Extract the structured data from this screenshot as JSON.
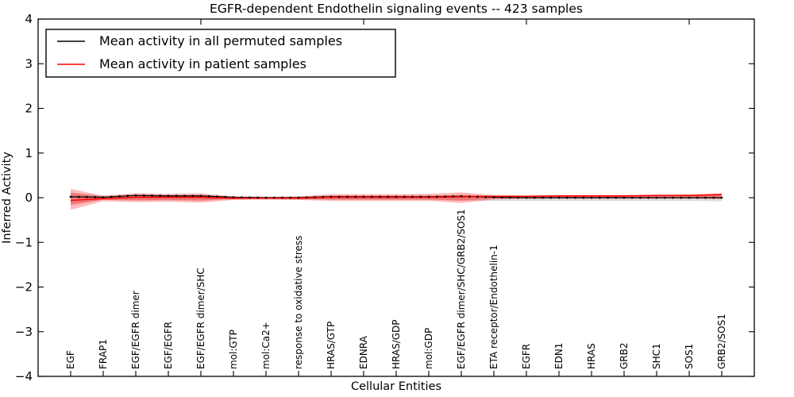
{
  "figure": {
    "background": "#ffffff",
    "border_color": "#000000"
  },
  "legend": {
    "position": "upper left",
    "entries": [
      {
        "label": "Mean activity in all permuted samples",
        "color": "#000000"
      },
      {
        "label": "Mean activity in patient samples",
        "color": "#ff0000"
      }
    ]
  },
  "chart_data": {
    "type": "line",
    "title": "EGFR-dependent Endothelin signaling events -- 423 samples",
    "xlabel": "Cellular Entities",
    "ylabel": "Inferred Activity",
    "ylim": [
      -4,
      4
    ],
    "yticks": [
      4,
      3,
      2,
      1,
      0,
      -1,
      -2,
      -3,
      -4
    ],
    "ytick_labels": [
      "4",
      "3",
      "2",
      "1",
      "0",
      "−1",
      "−2",
      "−3",
      "−4"
    ],
    "top_ticks": [
      5,
      10,
      15,
      20
    ],
    "grid": false,
    "legend_position": "upper left",
    "categories": [
      "EGF",
      "FRAP1",
      "EGF/EGFR dimer",
      "EGF/EGFR",
      "EGF/EGFR dimer/SHC",
      "mol:GTP",
      "mol:Ca2+",
      "response to oxidative stress",
      "HRAS/GTP",
      "EDNRA",
      "HRAS/GDP",
      "mol:GDP",
      "EGF/EGFR dimer/SHC/GRB2/SOS1",
      "ETA receptor/Endothelin-1",
      "EGFR",
      "EDN1",
      "HRAS",
      "GRB2",
      "SHC1",
      "SOS1",
      "GRB2/SOS1"
    ],
    "series": [
      {
        "name": "Mean activity in all permuted samples",
        "color": "#000000",
        "marker": "dot",
        "values": [
          0.02,
          0.01,
          0.05,
          0.04,
          0.04,
          0.01,
          0.0,
          0.0,
          0.02,
          0.02,
          0.02,
          0.02,
          0.03,
          0.01,
          0.0,
          0.0,
          0.0,
          0.0,
          0.0,
          0.0,
          0.0
        ]
      },
      {
        "name": "Mean activity in patient samples",
        "color": "#ff0000",
        "marker": "none",
        "values": [
          -0.06,
          -0.02,
          0.01,
          0.01,
          0.01,
          -0.01,
          -0.01,
          -0.01,
          0.01,
          0.01,
          0.01,
          0.01,
          0.02,
          0.03,
          0.03,
          0.04,
          0.04,
          0.04,
          0.05,
          0.05,
          0.07
        ]
      }
    ],
    "bands": [
      {
        "name": "permuted-samples-ci",
        "color": "#888888",
        "opacity": 0.3,
        "upper": [
          0.12,
          0.05,
          0.08,
          0.07,
          0.07,
          0.03,
          0.03,
          0.03,
          0.05,
          0.05,
          0.05,
          0.05,
          0.06,
          0.04,
          0.03,
          0.03,
          0.03,
          0.03,
          0.03,
          0.03,
          0.04
        ],
        "lower": [
          -0.14,
          -0.05,
          -0.06,
          -0.06,
          -0.06,
          -0.04,
          -0.04,
          -0.04,
          -0.05,
          -0.05,
          -0.05,
          -0.05,
          -0.06,
          -0.07,
          -0.07,
          -0.07,
          -0.07,
          -0.07,
          -0.07,
          -0.07,
          -0.08
        ]
      },
      {
        "name": "patient-samples-ci-outer",
        "color": "#ff0000",
        "opacity": 0.26,
        "upper": [
          0.2,
          0.04,
          0.1,
          0.09,
          0.1,
          0.03,
          0.02,
          0.03,
          0.08,
          0.08,
          0.08,
          0.09,
          0.12,
          0.06,
          0.05,
          0.06,
          0.06,
          0.06,
          0.06,
          0.07,
          0.1
        ],
        "lower": [
          -0.27,
          -0.08,
          -0.1,
          -0.09,
          -0.11,
          -0.05,
          -0.04,
          -0.05,
          -0.07,
          -0.07,
          -0.07,
          -0.07,
          -0.12,
          -0.04,
          -0.02,
          -0.02,
          -0.02,
          -0.02,
          -0.02,
          -0.02,
          -0.03
        ]
      },
      {
        "name": "patient-samples-ci-inner",
        "color": "#ff0000",
        "opacity": 0.26,
        "upper": [
          0.11,
          0.02,
          0.06,
          0.05,
          0.06,
          0.02,
          0.01,
          0.02,
          0.05,
          0.05,
          0.05,
          0.05,
          0.07,
          0.04,
          0.03,
          0.04,
          0.04,
          0.04,
          0.04,
          0.04,
          0.06
        ],
        "lower": [
          -0.17,
          -0.05,
          -0.06,
          -0.05,
          -0.07,
          -0.03,
          -0.02,
          -0.03,
          -0.04,
          -0.04,
          -0.04,
          -0.04,
          -0.07,
          -0.02,
          -0.01,
          -0.01,
          -0.01,
          -0.01,
          -0.01,
          -0.01,
          -0.02
        ]
      }
    ]
  }
}
